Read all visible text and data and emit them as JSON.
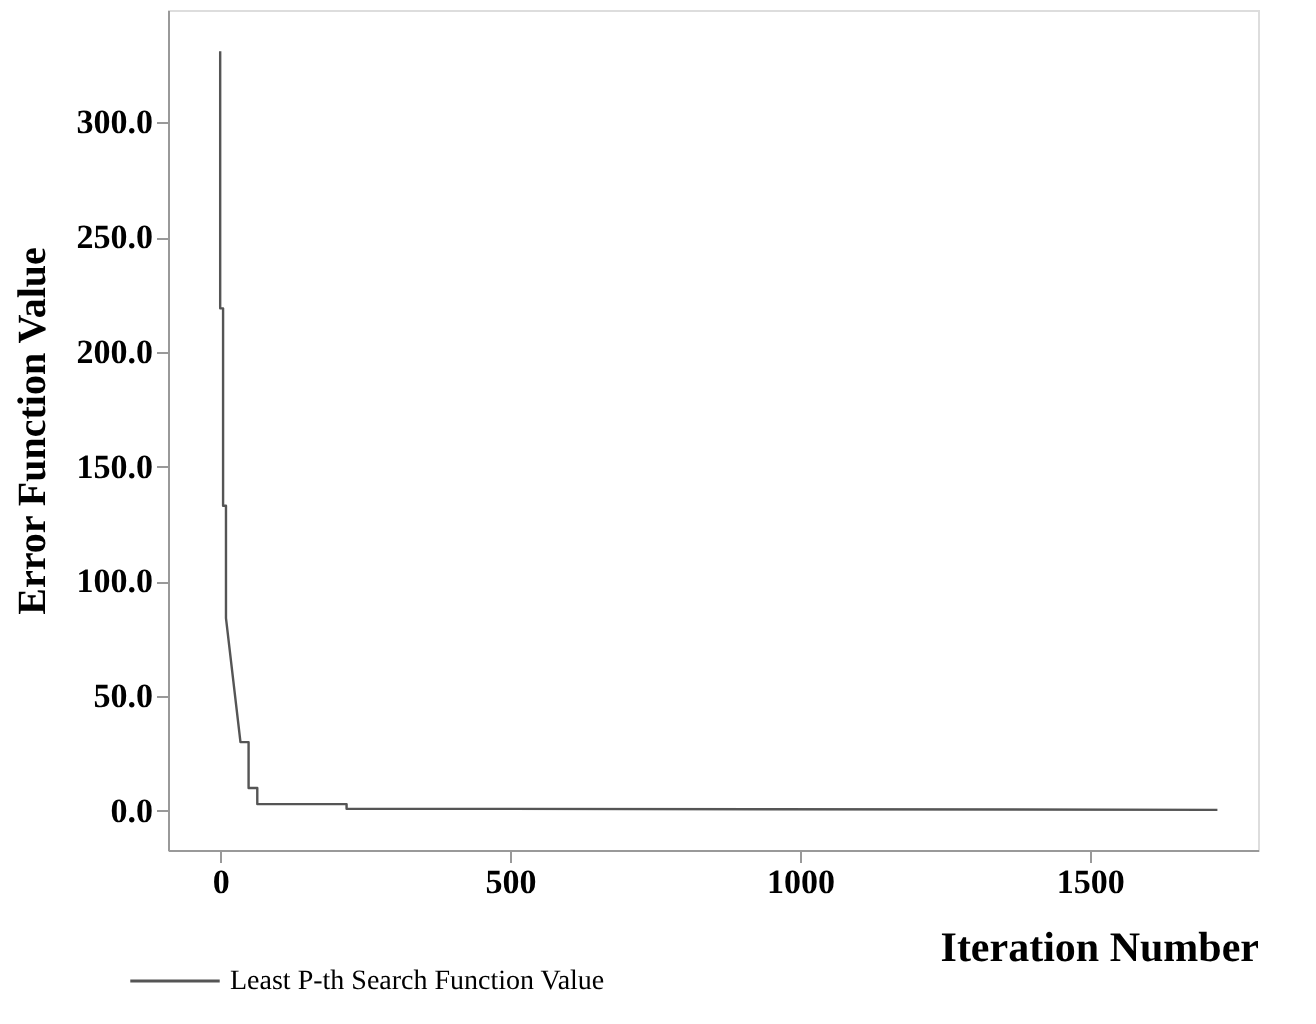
{
  "chart_data": {
    "type": "line",
    "xlabel": "Iteration Number",
    "ylabel": "Error Function Value",
    "series": [
      {
        "name": "Least P-th Search Function Value",
        "color": "#555555",
        "x": [
          0,
          0,
          5,
          5,
          10,
          10,
          35,
          49,
          49,
          64,
          64,
          218,
          218,
          1720
        ],
        "values": [
          331,
          219,
          219,
          133,
          133,
          84,
          30,
          30,
          10,
          10,
          3,
          3,
          1,
          0.5
        ]
      }
    ],
    "xlim": [
      -90,
      1790
    ],
    "xticks": [
      0,
      500,
      1000,
      1500
    ],
    "ylim": [
      -17,
      349
    ],
    "yticks": [
      {
        "value": 0,
        "label": "0.0"
      },
      {
        "value": 50,
        "label": "50.0"
      },
      {
        "value": 100,
        "label": "100.0"
      },
      {
        "value": 150,
        "label": "150.0"
      },
      {
        "value": 200,
        "label": "200.0"
      },
      {
        "value": 250,
        "label": "250.0"
      },
      {
        "value": 300,
        "label": "300.0"
      }
    ],
    "grid": false,
    "legend": "bottom left",
    "marker": "none",
    "line_style": "solid"
  }
}
